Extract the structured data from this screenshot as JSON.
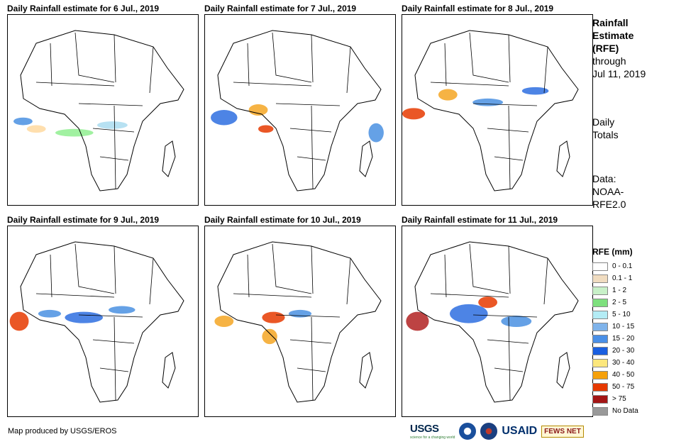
{
  "panels": [
    {
      "title": "Daily Rainfall estimate for 6 Jul., 2019",
      "rain": [
        [
          0.08,
          0.56,
          0.05,
          0.02,
          "#4a90e2"
        ],
        [
          0.35,
          0.62,
          0.1,
          0.02,
          "#90ee90"
        ],
        [
          0.55,
          0.58,
          0.08,
          0.02,
          "#aadcf0"
        ],
        [
          0.15,
          0.6,
          0.05,
          0.02,
          "#ffd9a0"
        ]
      ]
    },
    {
      "title": "Daily Rainfall estimate for 7 Jul., 2019",
      "rain": [
        [
          0.1,
          0.54,
          0.07,
          0.04,
          "#2e6fe0"
        ],
        [
          0.28,
          0.5,
          0.05,
          0.03,
          "#f5a623"
        ],
        [
          0.32,
          0.6,
          0.04,
          0.02,
          "#e63900"
        ],
        [
          0.9,
          0.62,
          0.04,
          0.05,
          "#4a90e2"
        ]
      ]
    },
    {
      "title": "Daily Rainfall estimate for 8 Jul., 2019",
      "rain": [
        [
          0.06,
          0.52,
          0.06,
          0.03,
          "#e63900"
        ],
        [
          0.24,
          0.42,
          0.05,
          0.03,
          "#f5a623"
        ],
        [
          0.45,
          0.46,
          0.08,
          0.02,
          "#4a90e2"
        ],
        [
          0.7,
          0.4,
          0.07,
          0.02,
          "#2e6fe0"
        ]
      ]
    },
    {
      "title": "Daily Rainfall estimate for 9 Jul., 2019",
      "rain": [
        [
          0.06,
          0.5,
          0.05,
          0.05,
          "#e63900"
        ],
        [
          0.22,
          0.46,
          0.06,
          0.02,
          "#4a90e2"
        ],
        [
          0.4,
          0.48,
          0.1,
          0.03,
          "#2e6fe0"
        ],
        [
          0.6,
          0.44,
          0.07,
          0.02,
          "#4a90e2"
        ]
      ]
    },
    {
      "title": "Daily Rainfall estimate for 10 Jul., 2019",
      "rain": [
        [
          0.1,
          0.5,
          0.05,
          0.03,
          "#f5a623"
        ],
        [
          0.36,
          0.48,
          0.06,
          0.03,
          "#e63900"
        ],
        [
          0.5,
          0.46,
          0.06,
          0.02,
          "#4a90e2"
        ],
        [
          0.34,
          0.58,
          0.04,
          0.04,
          "#f5a623"
        ]
      ]
    },
    {
      "title": "Daily Rainfall estimate for 11 Jul., 2019",
      "rain": [
        [
          0.08,
          0.5,
          0.06,
          0.05,
          "#b22222"
        ],
        [
          0.35,
          0.46,
          0.1,
          0.05,
          "#2e6fe0"
        ],
        [
          0.45,
          0.4,
          0.05,
          0.03,
          "#e63900"
        ],
        [
          0.6,
          0.5,
          0.08,
          0.03,
          "#4a90e2"
        ]
      ]
    }
  ],
  "side": {
    "title_line1": "Rainfall",
    "title_line2": "Estimate",
    "title_line3": "(RFE)",
    "through": "through",
    "date": "Jul 11, 2019",
    "totals_line1": "Daily",
    "totals_line2": "Totals",
    "data_line1": "Data:",
    "data_line2": "NOAA-",
    "data_line3": "RFE2.0"
  },
  "legend": {
    "title": "RFE (mm)",
    "items": [
      {
        "label": "0 - 0.1",
        "color": "#ffffff"
      },
      {
        "label": "0.1 - 1",
        "color": "#f0dcc0"
      },
      {
        "label": "1 - 2",
        "color": "#c8f0c8"
      },
      {
        "label": "2 - 5",
        "color": "#7ee07e"
      },
      {
        "label": "5 - 10",
        "color": "#b4ecf5"
      },
      {
        "label": "10 - 15",
        "color": "#7fb3ea"
      },
      {
        "label": "15 - 20",
        "color": "#4a8fe6"
      },
      {
        "label": "20 - 30",
        "color": "#1a5fe0"
      },
      {
        "label": "30 - 40",
        "color": "#fce77d"
      },
      {
        "label": "40 - 50",
        "color": "#f5a00a"
      },
      {
        "label": "50 - 75",
        "color": "#e63900"
      },
      {
        "label": "> 75",
        "color": "#a31515"
      },
      {
        "label": "No Data",
        "color": "#999999"
      }
    ]
  },
  "credit": "Map produced by USGS/EROS",
  "logos": {
    "usgs": "USGS",
    "usgs_tagline": "science for a changing world",
    "usaid": "USAID",
    "fews": "FEWS NET"
  }
}
